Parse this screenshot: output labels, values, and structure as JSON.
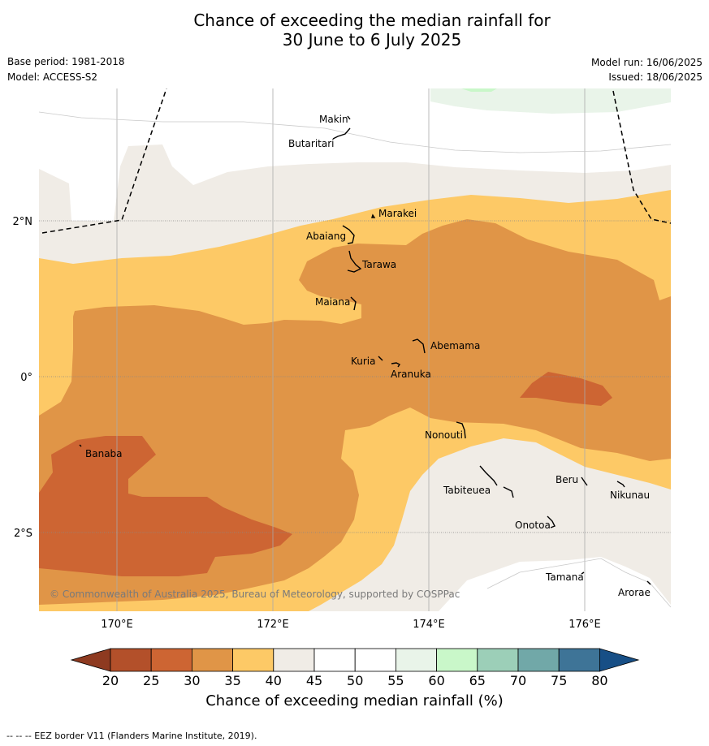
{
  "title": {
    "line1": "Chance of exceeding the median rainfall for",
    "line2": "30 June to 6 July 2025"
  },
  "meta": {
    "base_period": "Base period: 1981-2018",
    "model": "Model: ACCESS-S2",
    "model_run": "Model run: 16/06/2025",
    "issued": "Issued: 18/06/2025"
  },
  "axes": {
    "lon_ticks": [
      "170°E",
      "172°E",
      "174°E",
      "176°E"
    ],
    "lat_ticks": [
      "2°N",
      "0°",
      "2°S"
    ]
  },
  "places": [
    "Makin",
    "Butaritari",
    "Marakei",
    "Abaiang",
    "Tarawa",
    "Maiana",
    "Abemama",
    "Kuria",
    "Aranuka",
    "Nonouti",
    "Banaba",
    "Tabiteuea",
    "Beru",
    "Nikunau",
    "Onotoa",
    "Tamana",
    "Arorae"
  ],
  "copyright": "© Commonwealth of Australia 2025, Bureau of Meteorology, supported by COSPPac",
  "colorbar": {
    "label": "Chance of exceeding median rainfall (%)",
    "ticks": [
      "20",
      "25",
      "30",
      "35",
      "40",
      "45",
      "50",
      "55",
      "60",
      "65",
      "70",
      "75",
      "80"
    ],
    "colors": [
      "#b3502a",
      "#cd6533",
      "#e09547",
      "#fdc966",
      "#f0ece6",
      "#ffffff",
      "#ffffff",
      "#e9f4e9",
      "#c9f7c9",
      "#9ccfb8",
      "#71a8a8",
      "#3e7497"
    ],
    "low_extend_color": "#8e3a20",
    "high_extend_color": "#174f86"
  },
  "footnote": "-- -- -- EEZ border V11 (Flanders Marine Institute, 2019)."
}
